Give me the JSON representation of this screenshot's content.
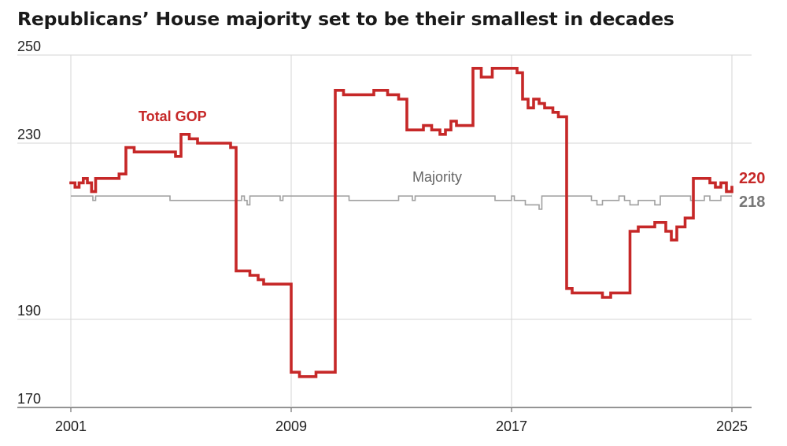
{
  "title": "Republicans’ House majority set to be their smallest in decades",
  "chart_data": {
    "type": "line",
    "xlim": [
      2001,
      2025
    ],
    "ylim": [
      170,
      250
    ],
    "y_ticks": [
      170,
      190,
      230,
      250
    ],
    "x_ticks": [
      2001,
      2009,
      2017,
      2025
    ],
    "grid": true,
    "series": [
      {
        "name": "Total GOP",
        "color": "#c62828",
        "end_label": "220",
        "x": [
          2001.0,
          2001.15,
          2001.3,
          2001.45,
          2001.6,
          2001.75,
          2001.9,
          2002.1,
          2002.25,
          2002.5,
          2002.75,
          2003.0,
          2003.3,
          2003.6,
          2004.0,
          2004.5,
          2004.8,
          2005.0,
          2005.3,
          2005.6,
          2006.0,
          2006.3,
          2006.5,
          2006.8,
          2007.0,
          2007.3,
          2007.5,
          2007.8,
          2008.0,
          2008.2,
          2008.5,
          2008.7,
          2009.0,
          2009.3,
          2009.6,
          2009.9,
          2010.2,
          2010.6,
          2010.9,
          2011.3,
          2011.6,
          2012.0,
          2012.3,
          2012.5,
          2012.9,
          2013.2,
          2013.5,
          2013.8,
          2014.1,
          2014.4,
          2014.6,
          2014.8,
          2015.0,
          2015.3,
          2015.6,
          2015.9,
          2016.3,
          2016.6,
          2016.9,
          2017.0,
          2017.2,
          2017.4,
          2017.6,
          2017.8,
          2018.0,
          2018.2,
          2018.5,
          2018.7,
          2019.0,
          2019.2,
          2019.5,
          2019.7,
          2020.0,
          2020.3,
          2020.6,
          2020.9,
          2021.0,
          2021.3,
          2021.6,
          2022.0,
          2022.2,
          2022.4,
          2022.6,
          2022.8,
          2023.0,
          2023.3,
          2023.6,
          2024.0,
          2024.2,
          2024.4,
          2024.6,
          2024.8,
          2025.0
        ],
        "y": [
          221,
          220,
          221,
          222,
          221,
          219,
          222,
          222,
          222,
          222,
          223,
          229,
          228,
          228,
          228,
          228,
          227,
          232,
          231,
          230,
          230,
          230,
          230,
          229,
          201,
          201,
          200,
          199,
          198,
          198,
          198,
          198,
          178,
          177,
          177,
          178,
          178,
          242,
          241,
          241,
          241,
          242,
          242,
          241,
          240,
          233,
          233,
          234,
          233,
          232,
          233,
          235,
          234,
          234,
          247,
          245,
          247,
          247,
          247,
          247,
          246,
          240,
          238,
          240,
          239,
          238,
          237,
          236,
          197,
          196,
          196,
          196,
          196,
          195,
          196,
          196,
          196,
          210,
          211,
          211,
          212,
          212,
          210,
          208,
          211,
          213,
          222,
          222,
          221,
          220,
          221,
          219,
          220
        ]
      },
      {
        "name": "Majority",
        "color": "#a0a0a0",
        "end_label": "218",
        "x": [
          2001.0,
          2001.7,
          2001.8,
          2001.9,
          2004.5,
          2004.6,
          2007.2,
          2007.3,
          2007.4,
          2007.5,
          2008.5,
          2008.6,
          2008.7,
          2011.0,
          2011.1,
          2012.8,
          2012.9,
          2013.4,
          2013.5,
          2016.3,
          2016.4,
          2017.0,
          2017.1,
          2017.3,
          2017.5,
          2017.9,
          2018.0,
          2018.1,
          2018.4,
          2019.8,
          2019.9,
          2020.0,
          2020.1,
          2020.3,
          2020.8,
          2020.9,
          2021.1,
          2021.3,
          2021.6,
          2022.0,
          2022.2,
          2022.4,
          2023.4,
          2023.5,
          2024.0,
          2024.2,
          2024.6,
          2025.0
        ],
        "y": [
          218,
          218,
          217,
          218,
          218,
          217,
          218,
          217,
          216,
          218,
          218,
          217,
          218,
          218,
          217,
          217,
          218,
          217,
          218,
          218,
          217,
          218,
          217,
          217,
          216,
          216,
          215,
          218,
          218,
          218,
          217,
          217,
          216,
          217,
          217,
          218,
          217,
          216,
          217,
          217,
          216,
          218,
          218,
          217,
          218,
          217,
          218,
          218
        ]
      }
    ],
    "annotations": {
      "gop_label": "Total GOP",
      "majority_label": "Majority"
    }
  }
}
